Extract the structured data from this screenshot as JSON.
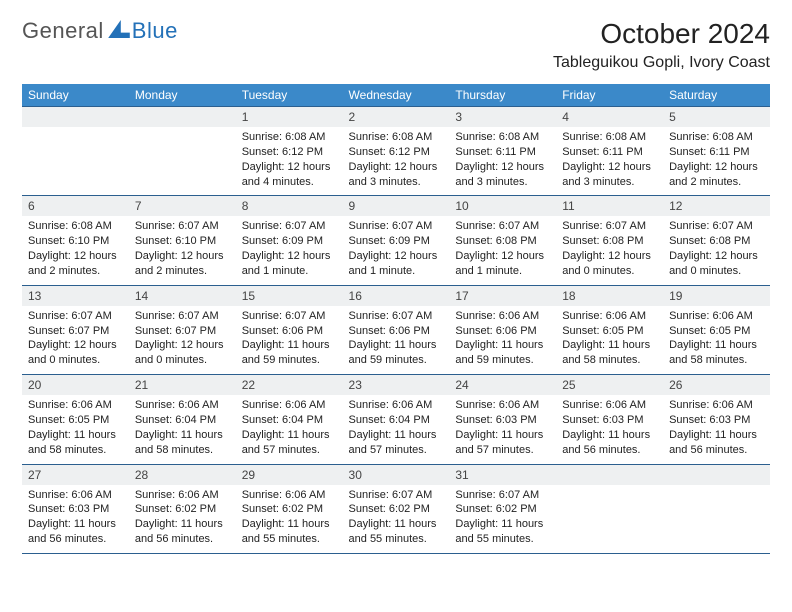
{
  "brand": {
    "general": "General",
    "blue": "Blue"
  },
  "title": "October 2024",
  "location": "Tableguikou Gopli, Ivory Coast",
  "colors": {
    "header_bg": "#3b89c9",
    "rule": "#2b5f8f",
    "daynum_bg": "#eef0f1",
    "brand_blue": "#2371b8",
    "brand_gray": "#555"
  },
  "days_of_week": [
    "Sunday",
    "Monday",
    "Tuesday",
    "Wednesday",
    "Thursday",
    "Friday",
    "Saturday"
  ],
  "weeks": [
    [
      {
        "n": "",
        "sr": "",
        "ss": "",
        "dl": ""
      },
      {
        "n": "",
        "sr": "",
        "ss": "",
        "dl": ""
      },
      {
        "n": "1",
        "sr": "Sunrise: 6:08 AM",
        "ss": "Sunset: 6:12 PM",
        "dl": "Daylight: 12 hours and 4 minutes."
      },
      {
        "n": "2",
        "sr": "Sunrise: 6:08 AM",
        "ss": "Sunset: 6:12 PM",
        "dl": "Daylight: 12 hours and 3 minutes."
      },
      {
        "n": "3",
        "sr": "Sunrise: 6:08 AM",
        "ss": "Sunset: 6:11 PM",
        "dl": "Daylight: 12 hours and 3 minutes."
      },
      {
        "n": "4",
        "sr": "Sunrise: 6:08 AM",
        "ss": "Sunset: 6:11 PM",
        "dl": "Daylight: 12 hours and 3 minutes."
      },
      {
        "n": "5",
        "sr": "Sunrise: 6:08 AM",
        "ss": "Sunset: 6:11 PM",
        "dl": "Daylight: 12 hours and 2 minutes."
      }
    ],
    [
      {
        "n": "6",
        "sr": "Sunrise: 6:08 AM",
        "ss": "Sunset: 6:10 PM",
        "dl": "Daylight: 12 hours and 2 minutes."
      },
      {
        "n": "7",
        "sr": "Sunrise: 6:07 AM",
        "ss": "Sunset: 6:10 PM",
        "dl": "Daylight: 12 hours and 2 minutes."
      },
      {
        "n": "8",
        "sr": "Sunrise: 6:07 AM",
        "ss": "Sunset: 6:09 PM",
        "dl": "Daylight: 12 hours and 1 minute."
      },
      {
        "n": "9",
        "sr": "Sunrise: 6:07 AM",
        "ss": "Sunset: 6:09 PM",
        "dl": "Daylight: 12 hours and 1 minute."
      },
      {
        "n": "10",
        "sr": "Sunrise: 6:07 AM",
        "ss": "Sunset: 6:08 PM",
        "dl": "Daylight: 12 hours and 1 minute."
      },
      {
        "n": "11",
        "sr": "Sunrise: 6:07 AM",
        "ss": "Sunset: 6:08 PM",
        "dl": "Daylight: 12 hours and 0 minutes."
      },
      {
        "n": "12",
        "sr": "Sunrise: 6:07 AM",
        "ss": "Sunset: 6:08 PM",
        "dl": "Daylight: 12 hours and 0 minutes."
      }
    ],
    [
      {
        "n": "13",
        "sr": "Sunrise: 6:07 AM",
        "ss": "Sunset: 6:07 PM",
        "dl": "Daylight: 12 hours and 0 minutes."
      },
      {
        "n": "14",
        "sr": "Sunrise: 6:07 AM",
        "ss": "Sunset: 6:07 PM",
        "dl": "Daylight: 12 hours and 0 minutes."
      },
      {
        "n": "15",
        "sr": "Sunrise: 6:07 AM",
        "ss": "Sunset: 6:06 PM",
        "dl": "Daylight: 11 hours and 59 minutes."
      },
      {
        "n": "16",
        "sr": "Sunrise: 6:07 AM",
        "ss": "Sunset: 6:06 PM",
        "dl": "Daylight: 11 hours and 59 minutes."
      },
      {
        "n": "17",
        "sr": "Sunrise: 6:06 AM",
        "ss": "Sunset: 6:06 PM",
        "dl": "Daylight: 11 hours and 59 minutes."
      },
      {
        "n": "18",
        "sr": "Sunrise: 6:06 AM",
        "ss": "Sunset: 6:05 PM",
        "dl": "Daylight: 11 hours and 58 minutes."
      },
      {
        "n": "19",
        "sr": "Sunrise: 6:06 AM",
        "ss": "Sunset: 6:05 PM",
        "dl": "Daylight: 11 hours and 58 minutes."
      }
    ],
    [
      {
        "n": "20",
        "sr": "Sunrise: 6:06 AM",
        "ss": "Sunset: 6:05 PM",
        "dl": "Daylight: 11 hours and 58 minutes."
      },
      {
        "n": "21",
        "sr": "Sunrise: 6:06 AM",
        "ss": "Sunset: 6:04 PM",
        "dl": "Daylight: 11 hours and 58 minutes."
      },
      {
        "n": "22",
        "sr": "Sunrise: 6:06 AM",
        "ss": "Sunset: 6:04 PM",
        "dl": "Daylight: 11 hours and 57 minutes."
      },
      {
        "n": "23",
        "sr": "Sunrise: 6:06 AM",
        "ss": "Sunset: 6:04 PM",
        "dl": "Daylight: 11 hours and 57 minutes."
      },
      {
        "n": "24",
        "sr": "Sunrise: 6:06 AM",
        "ss": "Sunset: 6:03 PM",
        "dl": "Daylight: 11 hours and 57 minutes."
      },
      {
        "n": "25",
        "sr": "Sunrise: 6:06 AM",
        "ss": "Sunset: 6:03 PM",
        "dl": "Daylight: 11 hours and 56 minutes."
      },
      {
        "n": "26",
        "sr": "Sunrise: 6:06 AM",
        "ss": "Sunset: 6:03 PM",
        "dl": "Daylight: 11 hours and 56 minutes."
      }
    ],
    [
      {
        "n": "27",
        "sr": "Sunrise: 6:06 AM",
        "ss": "Sunset: 6:03 PM",
        "dl": "Daylight: 11 hours and 56 minutes."
      },
      {
        "n": "28",
        "sr": "Sunrise: 6:06 AM",
        "ss": "Sunset: 6:02 PM",
        "dl": "Daylight: 11 hours and 56 minutes."
      },
      {
        "n": "29",
        "sr": "Sunrise: 6:06 AM",
        "ss": "Sunset: 6:02 PM",
        "dl": "Daylight: 11 hours and 55 minutes."
      },
      {
        "n": "30",
        "sr": "Sunrise: 6:07 AM",
        "ss": "Sunset: 6:02 PM",
        "dl": "Daylight: 11 hours and 55 minutes."
      },
      {
        "n": "31",
        "sr": "Sunrise: 6:07 AM",
        "ss": "Sunset: 6:02 PM",
        "dl": "Daylight: 11 hours and 55 minutes."
      },
      {
        "n": "",
        "sr": "",
        "ss": "",
        "dl": ""
      },
      {
        "n": "",
        "sr": "",
        "ss": "",
        "dl": ""
      }
    ]
  ]
}
